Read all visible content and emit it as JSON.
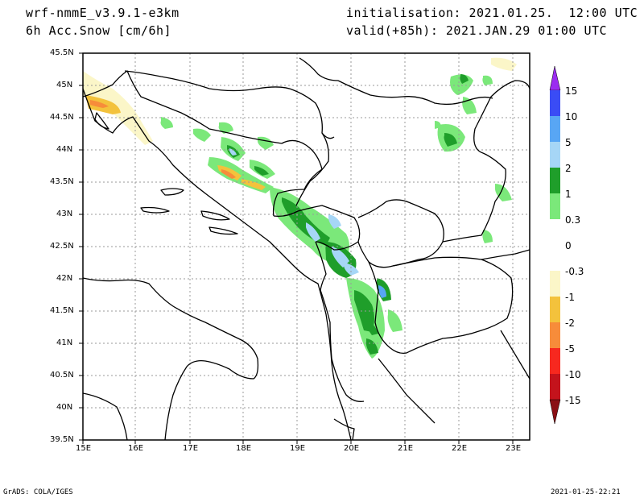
{
  "header": {
    "model": "wrf-nmmE_v3.9.1-e3km",
    "variable": "6h Acc.Snow [cm/6h]",
    "init": "initialisation: 2021.01.25.  12:00 UTC",
    "valid": "valid(+85h): 2021.JAN.29 01:00 UTC"
  },
  "map": {
    "lon_ticks": [
      "15E",
      "16E",
      "17E",
      "18E",
      "19E",
      "20E",
      "21E",
      "22E",
      "23E"
    ],
    "lat_ticks": [
      "45.5N",
      "45N",
      "44.5N",
      "44N",
      "43.5N",
      "43N",
      "42.5N",
      "42N",
      "41.5N",
      "41N",
      "40.5N",
      "40N",
      "39.5N"
    ],
    "lon_range": [
      15,
      23.3
    ],
    "lat_range": [
      39.5,
      45.5
    ],
    "grid": "dotted"
  },
  "colorbar": {
    "labels": [
      "15",
      "10",
      "5",
      "2",
      "1",
      "0.3",
      "0",
      "-0.3",
      "-1",
      "-2",
      "-5",
      "-10",
      "-15"
    ],
    "colors": [
      "#9b2cf0",
      "#3a4cf5",
      "#58a6f4",
      "#a6d6f6",
      "#1f9e2a",
      "#7be87a",
      "#ffffff",
      "#fbf6c8",
      "#f3c23c",
      "#f78c3a",
      "#f7281f",
      "#c4131c",
      "#8a0f14"
    ]
  },
  "footer": {
    "left": "GrADS: COLA/IGES",
    "right": "2021-01-25-22:21"
  },
  "icons": [
    "arrow-up-icon",
    "arrow-down-icon"
  ]
}
